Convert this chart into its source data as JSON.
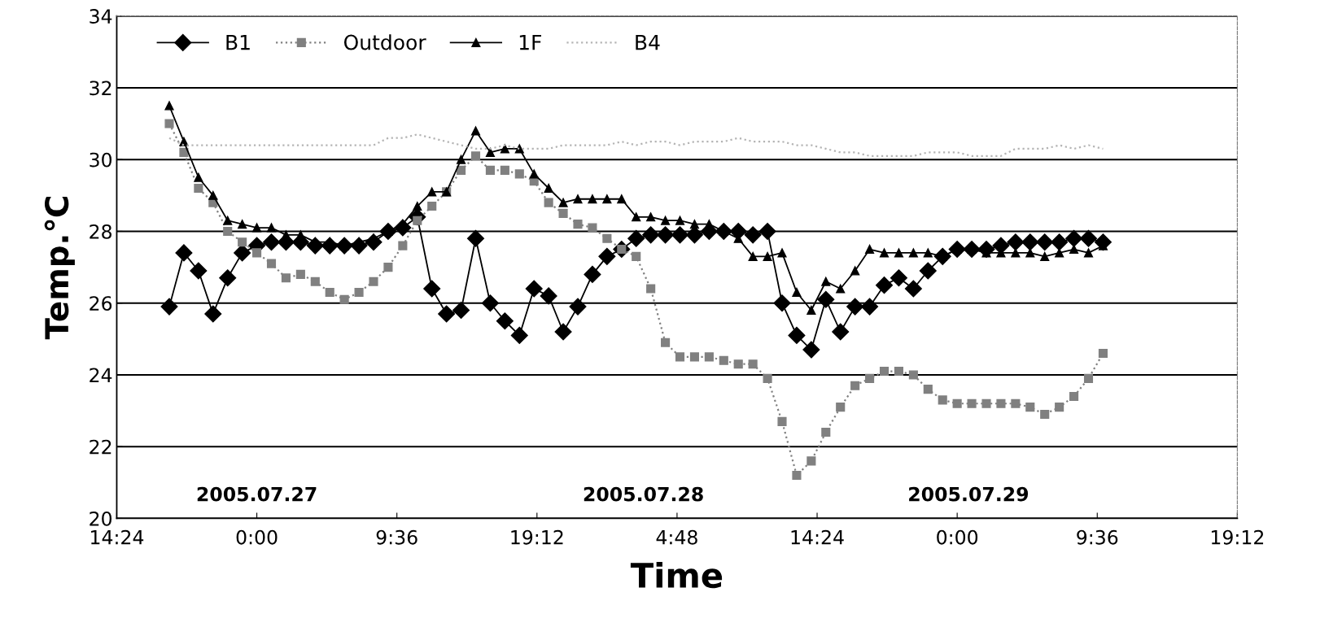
{
  "chart_data": {
    "type": "line",
    "xlabel": "Time",
    "ylabel": "Temp.℃",
    "x": [
      "2005-07-26T18:00",
      "2005-07-26T19:00",
      "2005-07-26T20:00",
      "2005-07-26T21:00",
      "2005-07-26T22:00",
      "2005-07-26T23:00",
      "2005-07-27T00:00",
      "2005-07-27T01:00",
      "2005-07-27T02:00",
      "2005-07-27T03:00",
      "2005-07-27T04:00",
      "2005-07-27T05:00",
      "2005-07-27T06:00",
      "2005-07-27T07:00",
      "2005-07-27T08:00",
      "2005-07-27T09:00",
      "2005-07-27T10:00",
      "2005-07-27T11:00",
      "2005-07-27T12:00",
      "2005-07-27T13:00",
      "2005-07-27T14:00",
      "2005-07-27T15:00",
      "2005-07-27T16:00",
      "2005-07-27T17:00",
      "2005-07-27T18:00",
      "2005-07-27T19:00",
      "2005-07-27T20:00",
      "2005-07-27T21:00",
      "2005-07-27T22:00",
      "2005-07-27T23:00",
      "2005-07-28T00:00",
      "2005-07-28T01:00",
      "2005-07-28T02:00",
      "2005-07-28T03:00",
      "2005-07-28T04:00",
      "2005-07-28T05:00",
      "2005-07-28T06:00",
      "2005-07-28T07:00",
      "2005-07-28T08:00",
      "2005-07-28T09:00",
      "2005-07-28T10:00",
      "2005-07-28T11:00",
      "2005-07-28T12:00",
      "2005-07-28T13:00",
      "2005-07-28T14:00",
      "2005-07-28T15:00",
      "2005-07-28T16:00",
      "2005-07-28T17:00",
      "2005-07-28T18:00",
      "2005-07-28T19:00",
      "2005-07-28T20:00",
      "2005-07-28T21:00",
      "2005-07-28T22:00",
      "2005-07-28T23:00",
      "2005-07-29T00:00",
      "2005-07-29T01:00",
      "2005-07-29T02:00",
      "2005-07-29T03:00",
      "2005-07-29T04:00",
      "2005-07-29T05:00",
      "2005-07-29T06:00",
      "2005-07-29T07:00",
      "2005-07-29T08:00",
      "2005-07-29T09:00",
      "2005-07-29T10:00"
    ],
    "series": [
      {
        "name": "B1",
        "color": "#000000",
        "marker": "diamond",
        "line_style": "solid",
        "values": [
          25.9,
          27.4,
          26.9,
          25.7,
          26.7,
          27.4,
          27.6,
          27.7,
          27.7,
          27.7,
          27.6,
          27.6,
          27.6,
          27.6,
          27.7,
          28.0,
          28.1,
          28.4,
          26.4,
          25.7,
          25.8,
          27.8,
          26.0,
          25.5,
          25.1,
          26.4,
          26.2,
          25.2,
          25.9,
          26.8,
          27.3,
          27.5,
          27.8,
          27.9,
          27.9,
          27.9,
          27.9,
          28.0,
          28.0,
          28.0,
          27.9,
          28.0,
          26.0,
          25.1,
          24.7,
          26.1,
          25.2,
          25.9,
          25.9,
          26.5,
          26.7,
          26.4,
          26.9,
          27.3,
          27.5,
          27.5,
          27.5,
          27.6,
          27.7,
          27.7,
          27.7,
          27.7,
          27.8,
          27.8,
          27.7
        ]
      },
      {
        "name": "Outdoor",
        "color": "#808080",
        "marker": "square",
        "line_style": "dotted",
        "values": [
          31.0,
          30.2,
          29.2,
          28.8,
          28.0,
          27.7,
          27.4,
          27.1,
          26.7,
          26.8,
          26.6,
          26.3,
          26.1,
          26.3,
          26.6,
          27.0,
          27.6,
          28.3,
          28.7,
          29.1,
          29.7,
          30.1,
          29.7,
          29.7,
          29.6,
          29.4,
          28.8,
          28.5,
          28.2,
          28.1,
          27.8,
          27.5,
          27.3,
          26.4,
          24.9,
          24.5,
          24.5,
          24.5,
          24.4,
          24.3,
          24.3,
          23.9,
          22.7,
          21.2,
          21.6,
          22.4,
          23.1,
          23.7,
          23.9,
          24.1,
          24.1,
          24.0,
          23.6,
          23.3,
          23.2,
          23.2,
          23.2,
          23.2,
          23.2,
          23.1,
          22.9,
          23.1,
          23.4,
          23.9,
          24.6
        ]
      },
      {
        "name": "1F",
        "color": "#000000",
        "marker": "triangle",
        "line_style": "solid",
        "values": [
          31.5,
          30.5,
          29.5,
          29.0,
          28.3,
          28.2,
          28.1,
          28.1,
          27.9,
          27.9,
          27.7,
          27.7,
          27.6,
          27.7,
          27.8,
          28.0,
          28.2,
          28.7,
          29.1,
          29.1,
          30.0,
          30.8,
          30.2,
          30.3,
          30.3,
          29.6,
          29.2,
          28.8,
          28.9,
          28.9,
          28.9,
          28.9,
          28.4,
          28.4,
          28.3,
          28.3,
          28.2,
          28.2,
          28.0,
          27.8,
          27.3,
          27.3,
          27.4,
          26.3,
          25.8,
          26.6,
          26.4,
          26.9,
          27.5,
          27.4,
          27.4,
          27.4,
          27.4,
          27.3,
          27.5,
          27.5,
          27.4,
          27.4,
          27.4,
          27.4,
          27.3,
          27.4,
          27.5,
          27.4,
          27.6
        ]
      },
      {
        "name": "B4",
        "color": "#b4b4b4",
        "marker": "none",
        "line_style": "dotted",
        "values": [
          30.6,
          30.4,
          30.4,
          30.4,
          30.4,
          30.4,
          30.4,
          30.4,
          30.4,
          30.4,
          30.4,
          30.4,
          30.4,
          30.4,
          30.4,
          30.6,
          30.6,
          30.7,
          30.6,
          30.5,
          30.4,
          30.3,
          30.3,
          30.4,
          30.3,
          30.3,
          30.3,
          30.4,
          30.4,
          30.4,
          30.4,
          30.5,
          30.4,
          30.5,
          30.5,
          30.4,
          30.5,
          30.5,
          30.5,
          30.6,
          30.5,
          30.5,
          30.5,
          30.4,
          30.4,
          30.3,
          30.2,
          30.2,
          30.1,
          30.1,
          30.1,
          30.1,
          30.2,
          30.2,
          30.2,
          30.1,
          30.1,
          30.1,
          30.3,
          30.3,
          30.3,
          30.4,
          30.3,
          30.4,
          30.3
        ]
      }
    ],
    "xlim": [
      "2005-07-26T14:24",
      "2005-07-29T19:12"
    ],
    "xticks": [
      {
        "value": "2005-07-26T14:24",
        "label": "14:24"
      },
      {
        "value": "2005-07-27T00:00",
        "label": "0:00"
      },
      {
        "value": "2005-07-27T09:36",
        "label": "9:36"
      },
      {
        "value": "2005-07-27T19:12",
        "label": "19:12"
      },
      {
        "value": "2005-07-28T04:48",
        "label": "4:48"
      },
      {
        "value": "2005-07-28T14:24",
        "label": "14:24"
      },
      {
        "value": "2005-07-29T00:00",
        "label": "0:00"
      },
      {
        "value": "2005-07-29T09:36",
        "label": "9:36"
      },
      {
        "value": "2005-07-29T19:12",
        "label": "19:12"
      }
    ],
    "ylim": [
      20,
      34
    ],
    "yticks": [
      20,
      22,
      24,
      26,
      28,
      30,
      32,
      34
    ],
    "annotations": [
      "2005.07.27",
      "2005.07.28",
      "2005.07.29"
    ],
    "grid": "y",
    "legend": "top left"
  }
}
